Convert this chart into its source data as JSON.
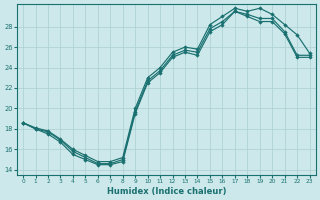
{
  "xlabel": "Humidex (Indice chaleur)",
  "background_color": "#cce8ea",
  "grid_color": "#aacfd2",
  "line_color": "#1a7070",
  "xlim": [
    -0.5,
    23.5
  ],
  "ylim": [
    13.5,
    30.2
  ],
  "yticks": [
    14,
    16,
    18,
    20,
    22,
    24,
    26,
    28
  ],
  "xticks": [
    0,
    1,
    2,
    3,
    4,
    5,
    6,
    7,
    8,
    9,
    10,
    11,
    12,
    13,
    14,
    15,
    16,
    17,
    18,
    19,
    20,
    21,
    22,
    23
  ],
  "line1_x": [
    0,
    1,
    2,
    3,
    4,
    5,
    6,
    7,
    8,
    9,
    10,
    11,
    12,
    13,
    14,
    15,
    16,
    17,
    18,
    19,
    20,
    21,
    22,
    23
  ],
  "line1_y": [
    18.6,
    18.0,
    17.5,
    16.7,
    15.5,
    15.0,
    14.5,
    14.5,
    14.8,
    19.5,
    22.5,
    23.5,
    25.0,
    25.5,
    25.2,
    27.5,
    28.2,
    29.5,
    29.0,
    28.5,
    28.5,
    27.3,
    25.0,
    25.0
  ],
  "line2_x": [
    0,
    1,
    2,
    3,
    4,
    5,
    6,
    7,
    8,
    9,
    10,
    11,
    12,
    13,
    14,
    15,
    16,
    17,
    18,
    19,
    20,
    21,
    22,
    23
  ],
  "line2_y": [
    18.6,
    18.0,
    17.7,
    16.9,
    15.8,
    15.2,
    14.6,
    14.6,
    15.0,
    19.7,
    22.7,
    23.7,
    25.2,
    25.7,
    25.5,
    27.8,
    28.5,
    29.5,
    29.2,
    28.8,
    28.8,
    27.5,
    25.2,
    25.2
  ],
  "line3_x": [
    0,
    1,
    2,
    3,
    4,
    5,
    6,
    7,
    8,
    9,
    10,
    11,
    12,
    13,
    14,
    15,
    16,
    17,
    18,
    19,
    20,
    21,
    22,
    23
  ],
  "line3_y": [
    18.6,
    18.1,
    17.8,
    17.0,
    16.0,
    15.4,
    14.8,
    14.8,
    15.2,
    20.0,
    23.0,
    24.0,
    25.5,
    26.0,
    25.8,
    28.2,
    29.0,
    29.8,
    29.5,
    29.8,
    29.2,
    28.2,
    27.2,
    25.4
  ]
}
